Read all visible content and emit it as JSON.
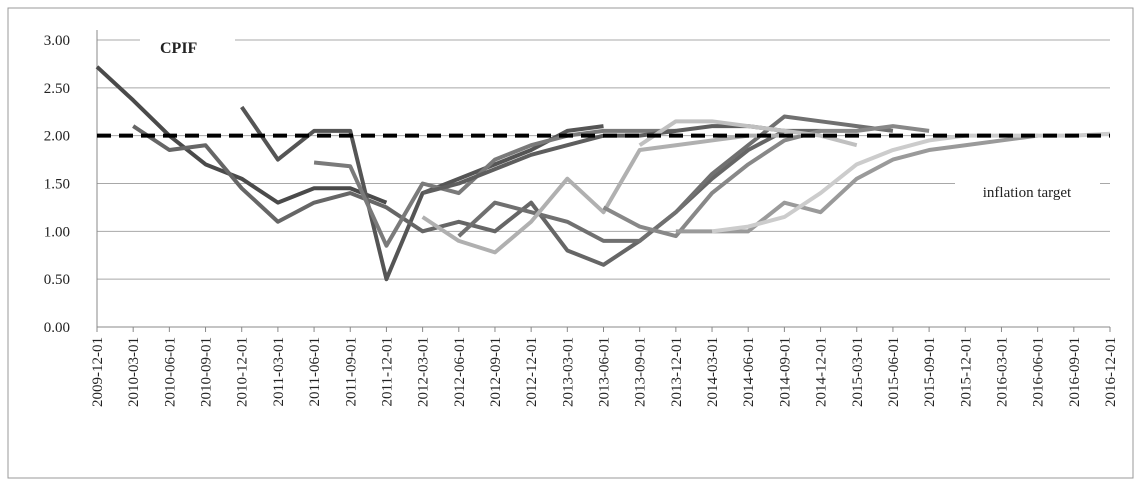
{
  "chart_data": {
    "type": "line",
    "title": "CPIF",
    "categories": [
      "2009-12-01",
      "2010-03-01",
      "2010-06-01",
      "2010-09-01",
      "2010-12-01",
      "2011-03-01",
      "2011-06-01",
      "2011-09-01",
      "2011-12-01",
      "2012-03-01",
      "2012-06-01",
      "2012-09-01",
      "2012-12-01",
      "2013-03-01",
      "2013-06-01",
      "2013-09-01",
      "2013-12-01",
      "2014-03-01",
      "2014-06-01",
      "2014-09-01",
      "2014-12-01",
      "2015-03-01",
      "2015-06-01",
      "2015-09-01",
      "2015-12-01",
      "2016-03-01",
      "2016-06-01",
      "2016-09-01",
      "2016-12-01"
    ],
    "series": [
      {
        "color": "#4a4a4a",
        "values": [
          2.72,
          2.37,
          2.0,
          1.7,
          1.55,
          1.3,
          1.45,
          1.45,
          1.3,
          null,
          null,
          null,
          null,
          null,
          null,
          null,
          null,
          null,
          null,
          null,
          null,
          null,
          null,
          null,
          null,
          null,
          null,
          null,
          null
        ]
      },
      {
        "color": "#555555",
        "values": [
          null,
          null,
          null,
          null,
          2.3,
          1.75,
          2.05,
          2.05,
          0.5,
          1.4,
          1.55,
          1.7,
          1.85,
          2.05,
          2.1,
          null,
          null,
          null,
          null,
          null,
          null,
          null,
          null,
          null,
          null,
          null,
          null,
          null,
          null
        ]
      },
      {
        "color": "#666666",
        "values": [
          null,
          2.1,
          1.85,
          1.9,
          1.45,
          1.1,
          1.3,
          1.4,
          1.25,
          1.0,
          1.1,
          1.0,
          1.3,
          0.8,
          0.65,
          0.9,
          1.2,
          1.55,
          1.85,
          2.05,
          2.05,
          null,
          null,
          null,
          null,
          null,
          null,
          null,
          null
        ]
      },
      {
        "color": "#7a7a7a",
        "values": [
          null,
          null,
          null,
          null,
          null,
          null,
          1.72,
          1.68,
          0.85,
          1.5,
          1.4,
          1.75,
          1.9,
          2.0,
          2.05,
          2.05,
          2.05,
          null,
          null,
          null,
          null,
          null,
          null,
          null,
          null,
          null,
          null,
          null,
          null
        ]
      },
      {
        "color": "#5e5e5e",
        "values": [
          null,
          null,
          null,
          null,
          null,
          null,
          null,
          null,
          null,
          1.4,
          1.5,
          1.65,
          1.8,
          1.9,
          2.0,
          2.0,
          2.05,
          2.1,
          2.1,
          2.05,
          null,
          null,
          null,
          null,
          null,
          null,
          null,
          null,
          null
        ]
      },
      {
        "color": "#707070",
        "values": [
          null,
          null,
          null,
          null,
          null,
          null,
          null,
          null,
          null,
          null,
          0.95,
          1.3,
          1.2,
          1.1,
          0.9,
          0.9,
          1.2,
          1.6,
          1.9,
          2.2,
          2.15,
          2.1,
          2.05,
          null,
          null,
          null,
          null,
          null,
          null
        ]
      },
      {
        "color": "#b0b0b0",
        "values": [
          null,
          null,
          null,
          null,
          null,
          null,
          null,
          null,
          null,
          1.15,
          0.9,
          0.78,
          1.1,
          1.55,
          1.2,
          1.85,
          1.9,
          1.95,
          2.0,
          2.0,
          null,
          null,
          null,
          null,
          null,
          null,
          null,
          null,
          null
        ]
      },
      {
        "color": "#888888",
        "values": [
          null,
          null,
          null,
          null,
          null,
          null,
          null,
          null,
          null,
          null,
          null,
          null,
          null,
          null,
          1.25,
          1.05,
          0.95,
          1.4,
          1.7,
          1.95,
          2.05,
          2.05,
          2.1,
          2.05,
          null,
          null,
          null,
          null,
          null
        ]
      },
      {
        "color": "#9a9a9a",
        "values": [
          null,
          null,
          null,
          null,
          null,
          null,
          null,
          null,
          null,
          null,
          null,
          null,
          null,
          null,
          null,
          null,
          1.0,
          1.0,
          1.0,
          1.3,
          1.2,
          1.55,
          1.75,
          1.85,
          1.9,
          1.95,
          2.0,
          null,
          null
        ]
      },
      {
        "color": "#cccccc",
        "values": [
          null,
          null,
          null,
          null,
          null,
          null,
          null,
          null,
          null,
          null,
          null,
          null,
          null,
          null,
          null,
          null,
          null,
          1.0,
          1.05,
          1.15,
          1.4,
          1.7,
          1.85,
          1.95,
          2.0,
          2.0,
          2.0,
          2.0,
          2.02
        ]
      },
      {
        "color": "#c0c0c0",
        "values": [
          null,
          null,
          null,
          null,
          null,
          null,
          null,
          null,
          null,
          null,
          null,
          null,
          null,
          null,
          null,
          1.9,
          2.15,
          2.15,
          2.1,
          2.05,
          2.0,
          1.9,
          null,
          null,
          null,
          null,
          null,
          null,
          null
        ]
      }
    ],
    "reference_line": {
      "value": 2,
      "label": "inflation target"
    },
    "ylim": [
      0,
      3
    ],
    "yticks": [
      {
        "value": 0,
        "label": "0.00"
      },
      {
        "value": 0.5,
        "label": "0.50"
      },
      {
        "value": 1,
        "label": "1.00"
      },
      {
        "value": 1.5,
        "label": "1.50"
      },
      {
        "value": 2,
        "label": "2.00"
      },
      {
        "value": 2.5,
        "label": "2.50"
      },
      {
        "value": 3,
        "label": "3.00"
      }
    ],
    "grid": true
  }
}
